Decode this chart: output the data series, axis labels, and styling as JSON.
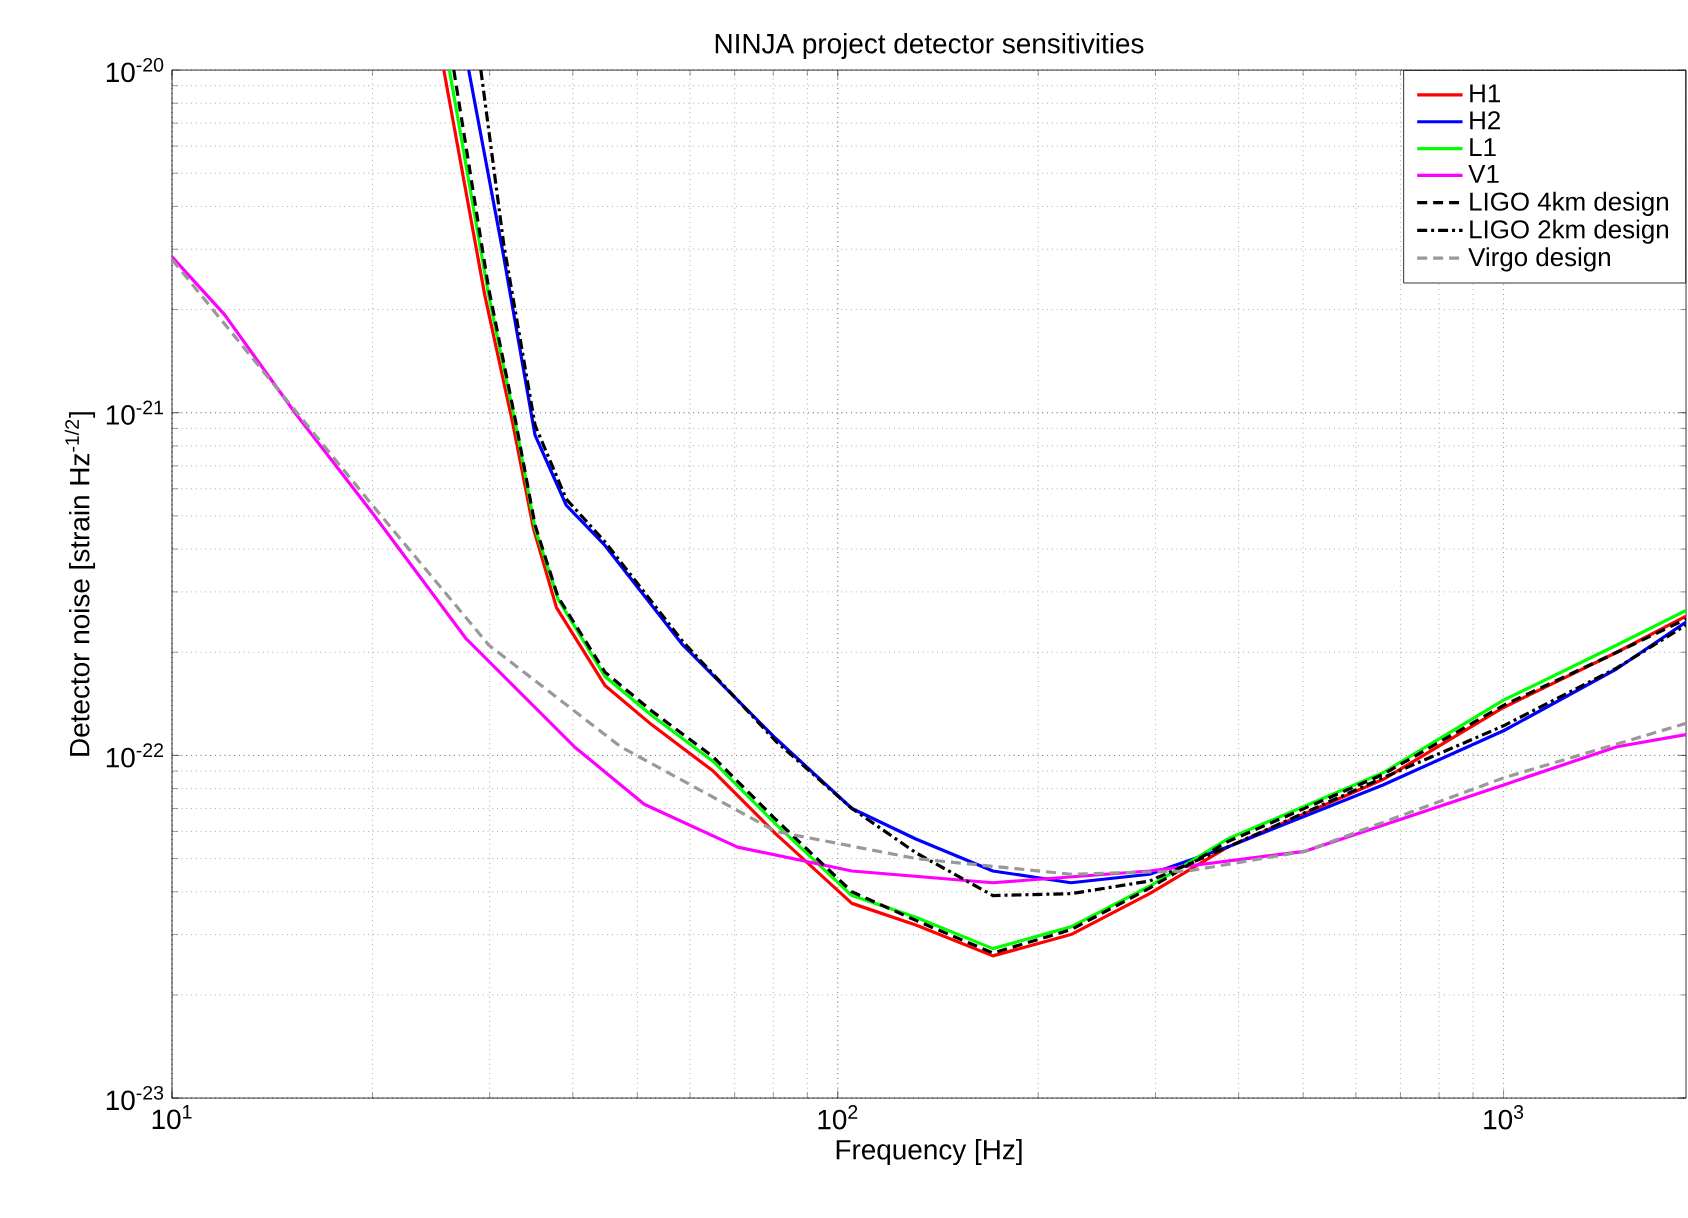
{
  "chart_data": {
    "type": "line",
    "title": "NINJA project detector sensitivities",
    "xlabel": "Frequency [Hz]",
    "ylabel": "Detector noise [strain Hz$^{-1/2}$]",
    "log": "xy",
    "grid": true,
    "legend": "top right",
    "marker": "none",
    "xlim": [
      10,
      1880
    ],
    "ylim": [
      1e-23,
      1e-20
    ],
    "xticks": [
      {
        "value": 10,
        "label": "10$^{1}$"
      },
      {
        "value": 100,
        "label": "10$^{2}$"
      },
      {
        "value": 1000,
        "label": "10$^{3}$"
      }
    ],
    "yticks": [
      {
        "value": 1e-23,
        "label": "10$^{-23}$"
      },
      {
        "value": 1e-22,
        "label": "10$^{-22}$"
      },
      {
        "value": 1e-21,
        "label": "10$^{-21}$"
      },
      {
        "value": 1e-20,
        "label": "10$^{-20}$"
      }
    ],
    "series": [
      {
        "name": "H1",
        "color": "#ff0000",
        "line_style": "solid",
        "x": [
          25.6,
          29.5,
          32.5,
          34.9,
          37.8,
          44.7,
          52.5,
          65.0,
          80.7,
          105,
          131,
          171,
          224,
          294,
          385,
          659,
          1000,
          1480,
          1880
        ],
        "values": [
          1e-20,
          2.2e-21,
          9.3e-22,
          4.6e-22,
          2.7e-22,
          1.6e-22,
          1.23e-22,
          9e-23,
          5.9e-23,
          3.7e-23,
          3.2e-23,
          2.6e-23,
          3e-23,
          3.95e-23,
          5.4e-23,
          8.5e-23,
          1.38e-22,
          2e-22,
          2.55e-22
        ]
      },
      {
        "name": "H2",
        "color": "#0000ff",
        "line_style": "solid",
        "x": [
          27.9,
          31.5,
          35.1,
          39.1,
          44.7,
          58.5,
          80.7,
          105,
          131,
          171,
          224,
          294,
          385,
          659,
          1000,
          1480,
          1880
        ],
        "values": [
          1e-20,
          2.85e-21,
          8.6e-22,
          5.37e-22,
          4.1e-22,
          2.1e-22,
          1.12e-22,
          7e-23,
          5.7e-23,
          4.6e-23,
          4.25e-23,
          4.5e-23,
          5.4e-23,
          8.2e-23,
          1.18e-22,
          1.79e-22,
          2.45e-22
        ]
      },
      {
        "name": "L1",
        "color": "#00ff00",
        "line_style": "solid",
        "x": [
          26.1,
          29.9,
          32.8,
          35.1,
          38.0,
          44.7,
          52.5,
          65.0,
          80.7,
          105,
          131,
          171,
          224,
          294,
          385,
          659,
          1000,
          1480,
          1880
        ],
        "values": [
          1e-20,
          2.2e-21,
          9.3e-22,
          4.6e-22,
          2.86e-22,
          1.7e-22,
          1.31e-22,
          9.6e-23,
          6.3e-23,
          3.9e-23,
          3.37e-23,
          2.73e-23,
          3.16e-23,
          4.15e-23,
          5.7e-23,
          8.9e-23,
          1.45e-22,
          2.1e-22,
          2.65e-22
        ]
      },
      {
        "name": "V1",
        "color": "#ff00ff",
        "line_style": "solid",
        "x": [
          10,
          12.0,
          15.3,
          20.0,
          27.6,
          40.2,
          51.2,
          70.7,
          105,
          171,
          294,
          503,
          1000,
          1480,
          1880
        ],
        "values": [
          2.85e-21,
          1.93e-21,
          1e-21,
          5.1e-22,
          2.2e-22,
          1.06e-22,
          7.2e-23,
          5.4e-23,
          4.6e-23,
          4.25e-23,
          4.6e-23,
          5.25e-23,
          8.2e-23,
          1.06e-22,
          1.15e-22
        ]
      },
      {
        "name": "LIGO 4km design",
        "color": "#000000",
        "line_style": "dashed",
        "x": [
          26.5,
          29.9,
          32.8,
          35.1,
          38.0,
          44.7,
          52.5,
          65.0,
          80.7,
          105,
          131,
          171,
          224,
          294,
          385,
          659,
          1000,
          1480,
          1880
        ],
        "values": [
          1e-20,
          2.3e-21,
          9.5e-22,
          4.7e-22,
          2.9e-22,
          1.75e-22,
          1.35e-22,
          9.9e-23,
          6.5e-23,
          4e-23,
          3.3e-23,
          2.65e-23,
          3.1e-23,
          4.1e-23,
          5.6e-23,
          8.8e-23,
          1.4e-22,
          2e-22,
          2.5e-22
        ]
      },
      {
        "name": "LIGO 2km design",
        "color": "#000000",
        "line_style": "dashdot",
        "x": [
          29.1,
          31.5,
          35.1,
          39.1,
          44.7,
          58.5,
          80.7,
          105,
          131,
          171,
          224,
          294,
          385,
          659,
          1000,
          1480,
          1880
        ],
        "values": [
          1e-20,
          3.1e-21,
          9.2e-22,
          5.6e-22,
          4.2e-22,
          2.15e-22,
          1.1e-22,
          7e-23,
          5.2e-23,
          3.9e-23,
          3.95e-23,
          4.3e-23,
          5.4e-23,
          8.6e-23,
          1.22e-22,
          1.8e-22,
          2.4e-22
        ]
      },
      {
        "name": "Virgo design",
        "color": "#999999",
        "line_style": "dashed",
        "x": [
          10,
          20,
          29.9,
          47.2,
          80.7,
          131,
          224,
          336,
          503,
          1000,
          1880
        ],
        "values": [
          2.8e-21,
          5.37e-22,
          2.1e-22,
          1.06e-22,
          6e-23,
          5e-23,
          4.5e-23,
          4.6e-23,
          5.25e-23,
          8.6e-23,
          1.24e-22
        ]
      }
    ]
  }
}
